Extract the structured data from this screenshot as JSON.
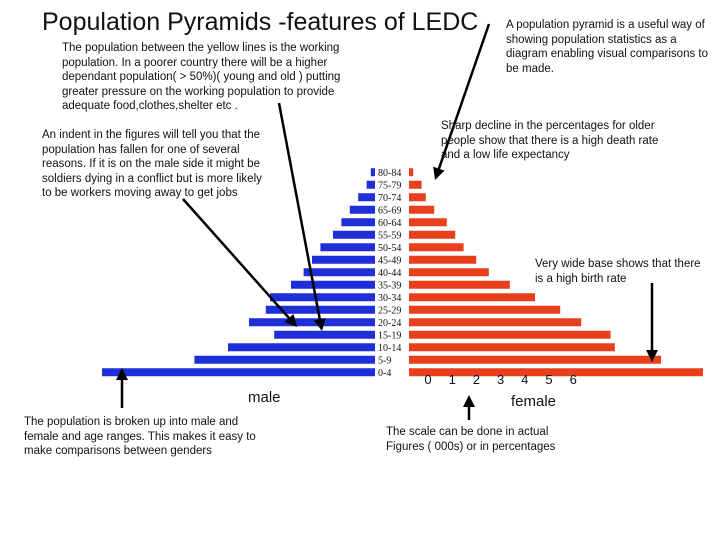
{
  "title": "Population Pyramids -features of LEDC",
  "notes": {
    "intro": "A population pyramid  is a useful way of showing population statistics  as a diagram enabling visual comparisons to be made.",
    "working": "The population between the yellow lines is the working population. In a poorer country there will be a higher dependant population( > 50%)( young and old ) putting greater pressure on the working population to provide adequate food,clothes,shelter etc .",
    "indent": "An indent in the figures will tell you that the population has fallen for one of several reasons. If it is on the male side it might be soldiers dying in a conflict but is more likely to be workers moving away to get jobs",
    "decline": "Sharp decline in the percentages for older people show that there is a high death rate and a low life expectancy",
    "wide_base": "Very wide base shows that there is a high birth rate",
    "genders": "The population is broken up into male and female and age ranges. This makes it easy  to make comparisons between genders",
    "scale": "The scale can be done in actual Figures ( 000s) or in percentages"
  },
  "labels": {
    "male": "male",
    "female": "female"
  },
  "colors": {
    "male": "#1f2fd8",
    "female": "#e8401c",
    "arrow": "#000000"
  },
  "chart_data": {
    "type": "bar",
    "orientation": "horizontal-pyramid",
    "age_groups": [
      "80-84",
      "75-79",
      "70-74",
      "65-69",
      "60-64",
      "55-59",
      "50-54",
      "45-49",
      "40-44",
      "35-39",
      "30-34",
      "25-29",
      "20-24",
      "15-19",
      "10-14",
      "5-9",
      "0-4"
    ],
    "series": [
      {
        "name": "male",
        "values": [
          0.1,
          0.2,
          0.4,
          0.6,
          0.8,
          1.0,
          1.3,
          1.5,
          1.7,
          2.0,
          2.5,
          2.6,
          3.0,
          2.4,
          3.5,
          4.3,
          6.5
        ]
      },
      {
        "name": "female",
        "values": [
          0.1,
          0.3,
          0.4,
          0.6,
          0.9,
          1.1,
          1.3,
          1.6,
          1.9,
          2.4,
          3.0,
          3.6,
          4.1,
          4.8,
          4.9,
          6.0,
          7.0
        ]
      }
    ],
    "x_ticks": [
      "0",
      "1",
      "2",
      "3",
      "4",
      "5",
      "6"
    ],
    "xlim": [
      0,
      6
    ]
  }
}
